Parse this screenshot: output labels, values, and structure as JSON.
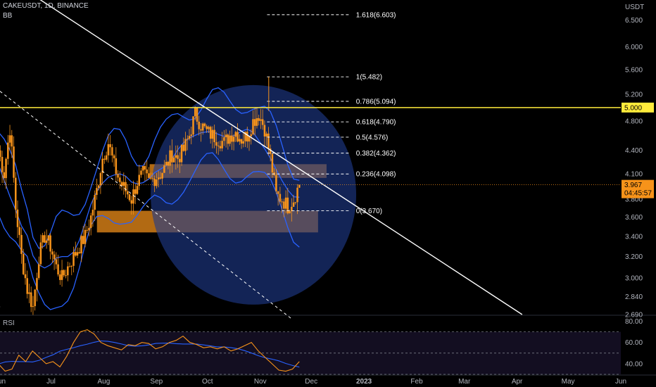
{
  "header": {
    "symbol": "CAKEUSDT, 1D, BINANCE",
    "indicator": "BB",
    "rsi_label": "RSI"
  },
  "price_axis": {
    "unit": "USDT",
    "ticks": [
      "6.500",
      "6.000",
      "5.600",
      "5.200",
      "4.800",
      "4.400",
      "4.100",
      "3.800",
      "3.600",
      "3.400",
      "3.200",
      "3.000",
      "2.840",
      "2.690"
    ],
    "current_price": "3.967",
    "countdown": "04:45:57",
    "level_tag": "5.000"
  },
  "rsi_axis": {
    "ticks": [
      "80.00",
      "60.00",
      "40.00"
    ]
  },
  "time_axis": {
    "ticks": [
      "Jun",
      "Jul",
      "Aug",
      "Sep",
      "Oct",
      "Nov",
      "Dec",
      "2023",
      "Feb",
      "Mar",
      "Apr",
      "May",
      "Jun"
    ]
  },
  "colors": {
    "background": "#000000",
    "candle": "#f7931a",
    "bollinger": "#2962ff",
    "horizontal_line": "#ffeb3b",
    "zone": "#f7931a",
    "ellipse": "#1e3a8a",
    "trendline": "#ffffff",
    "rsi_line": "#f7931a",
    "rsi_ma": "#2962ff"
  },
  "chart_data": {
    "type": "candlestick",
    "symbol": "CAKEUSDT",
    "timeframe": "1D",
    "exchange": "BINANCE",
    "price_scale": "log",
    "ylim": [
      2.69,
      6.9
    ],
    "x_range": [
      "2022-06-01",
      "2023-06-01"
    ],
    "fib_levels": [
      {
        "ratio": "1.618",
        "price": 6.603,
        "label": "1.618(6.603)"
      },
      {
        "ratio": "1",
        "price": 5.482,
        "label": "1(5.482)"
      },
      {
        "ratio": "0.786",
        "price": 5.094,
        "label": "0.786(5.094)"
      },
      {
        "ratio": "0.618",
        "price": 4.79,
        "label": "0.618(4.790)"
      },
      {
        "ratio": "0.5",
        "price": 4.576,
        "label": "0.5(4.576)"
      },
      {
        "ratio": "0.382",
        "price": 4.362,
        "label": "0.382(4.362)"
      },
      {
        "ratio": "0.236",
        "price": 4.098,
        "label": "0.236(4.098)"
      },
      {
        "ratio": "0",
        "price": 3.67,
        "label": "0(3.670)"
      }
    ],
    "horizontal_line": 5.0,
    "zones": [
      {
        "from_date": "2022-08-28",
        "to_date": "2022-12-10",
        "top": 4.22,
        "bottom": 4.05
      },
      {
        "from_date": "2022-07-28",
        "to_date": "2022-12-05",
        "top": 3.67,
        "bottom": 3.44
      }
    ],
    "ellipse": {
      "center_date": "2022-10-28",
      "center_price": 3.85
    },
    "trendlines": [
      {
        "style": "solid",
        "from": [
          "2022-05-04",
          8.2
        ],
        "to": [
          "2023-04-04",
          2.69
        ]
      },
      {
        "style": "solid",
        "from": [
          "2022-05-20",
          2.85
        ],
        "to": [
          "2022-06-01",
          2.75
        ]
      },
      {
        "style": "dashed",
        "from": [
          "2022-06-01",
          5.25
        ],
        "to": [
          "2022-11-20",
          2.65
        ]
      }
    ],
    "closes": [
      4.4,
      4.1,
      4.7,
      3.7,
      3.2,
      2.9,
      2.75,
      3.2,
      3.4,
      3.3,
      3.1,
      3.0,
      3.1,
      3.2,
      3.3,
      3.4,
      3.6,
      3.9,
      4.3,
      4.5,
      4.2,
      4.0,
      3.9,
      3.8,
      4.0,
      4.1,
      4.0,
      4.05,
      4.1,
      4.2,
      4.35,
      4.3,
      4.4,
      4.6,
      4.9,
      4.75,
      4.65,
      4.6,
      4.55,
      4.5,
      4.6,
      4.65,
      4.55,
      4.6,
      4.8,
      4.9,
      4.7,
      4.3,
      3.85,
      3.8,
      3.72,
      3.8,
      3.97
    ],
    "current_price": 3.967,
    "rsi": {
      "ylim": [
        30,
        85
      ],
      "levels": [
        70,
        50,
        30
      ],
      "values": [
        40,
        33,
        35,
        48,
        42,
        52,
        46,
        40,
        42,
        37,
        47,
        60,
        70,
        72,
        68,
        60,
        57,
        55,
        53,
        58,
        57,
        60,
        59,
        54,
        56,
        60,
        62,
        66,
        60,
        58,
        55,
        56,
        54,
        56,
        52,
        54,
        57,
        60,
        52,
        46,
        40,
        34,
        33,
        35,
        42
      ]
    }
  }
}
